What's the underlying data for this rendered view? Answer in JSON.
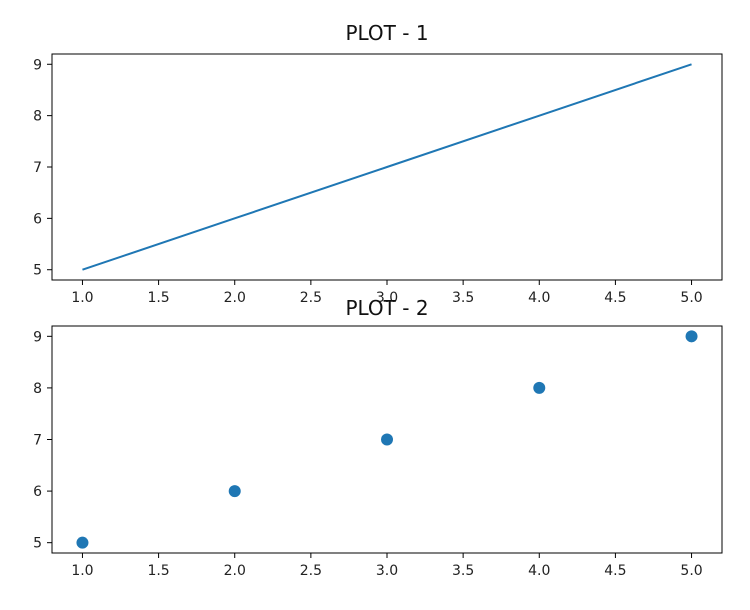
{
  "chart_data": [
    {
      "type": "line",
      "title": "PLOT - 1",
      "xlabel": "",
      "ylabel": "",
      "x": [
        1,
        2,
        3,
        4,
        5
      ],
      "series": [
        {
          "values": [
            5,
            6,
            7,
            8,
            9
          ],
          "color": "#1f77b4"
        }
      ],
      "xlim": [
        0.8,
        5.2
      ],
      "ylim": [
        4.8,
        9.2
      ],
      "xticks": [
        "1.0",
        "1.5",
        "2.0",
        "2.5",
        "3.0",
        "3.5",
        "4.0",
        "4.5",
        "5.0"
      ],
      "yticks": [
        "5",
        "6",
        "7",
        "8",
        "9"
      ],
      "grid": false
    },
    {
      "type": "scatter",
      "title": "PLOT - 2",
      "xlabel": "",
      "ylabel": "",
      "x": [
        1,
        2,
        3,
        4,
        5
      ],
      "series": [
        {
          "values": [
            5,
            6,
            7,
            8,
            9
          ],
          "color": "#1f77b4"
        }
      ],
      "xlim": [
        0.8,
        5.2
      ],
      "ylim": [
        4.8,
        9.2
      ],
      "xticks": [
        "1.0",
        "1.5",
        "2.0",
        "2.5",
        "3.0",
        "3.5",
        "4.0",
        "4.5",
        "5.0"
      ],
      "yticks": [
        "5",
        "6",
        "7",
        "8",
        "9"
      ],
      "grid": false
    }
  ]
}
